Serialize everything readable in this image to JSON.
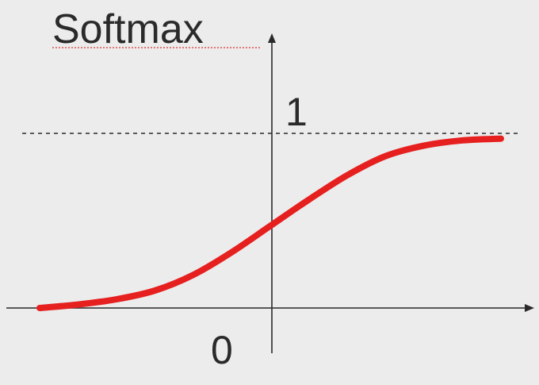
{
  "chart_data": {
    "type": "line",
    "title": "Softmax",
    "xlabel": "",
    "ylabel": "",
    "y_tick_labels": {
      "zero": "0",
      "one": "1"
    },
    "ylim": [
      0,
      1
    ],
    "xlim": [
      -6,
      6
    ],
    "grid": false,
    "legend": "none",
    "asymptote": {
      "y": 1,
      "style": "dashed"
    },
    "series": [
      {
        "color": "#e5201f",
        "x": [
          -6,
          -5,
          -4,
          -3,
          -2,
          -1,
          0,
          1,
          2,
          3,
          4,
          5,
          6
        ],
        "y": [
          0.0,
          0.02,
          0.05,
          0.1,
          0.19,
          0.32,
          0.47,
          0.62,
          0.76,
          0.87,
          0.93,
          0.96,
          0.97
        ]
      }
    ],
    "colors": {
      "background": "#ececec",
      "axis": "#2a2a2a",
      "curve": "#e5201f"
    }
  }
}
